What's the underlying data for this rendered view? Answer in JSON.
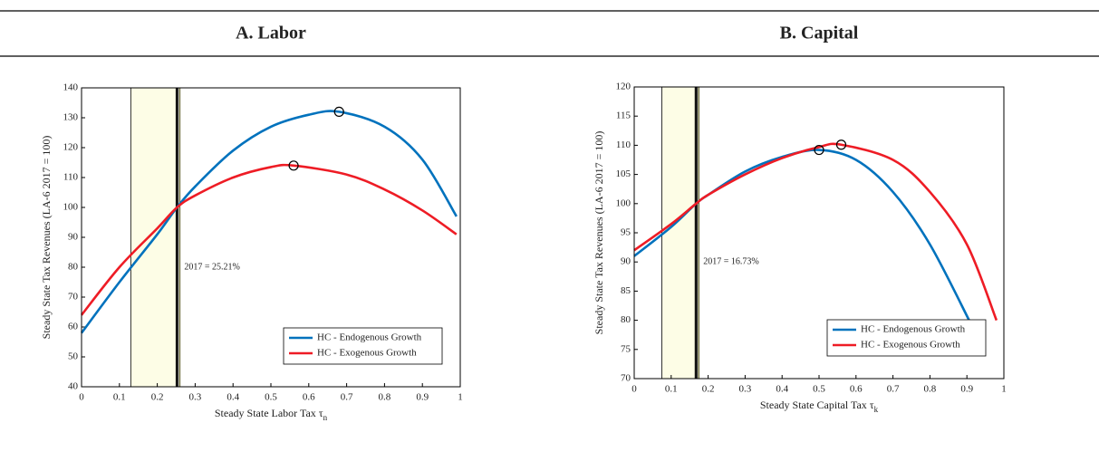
{
  "chart_data": [
    {
      "type": "line",
      "title": "A. Labor",
      "xlabel": "Steady State Labor Tax τ",
      "xlabel_subscript": "n",
      "ylabel": "Steady State Tax Revenues (LA-6 2017 = 100)",
      "xlim": [
        0,
        1
      ],
      "xticks": [
        0,
        0.1,
        0.2,
        0.3,
        0.4,
        0.5,
        0.6,
        0.7,
        0.8,
        0.9,
        1
      ],
      "ylim": [
        40,
        140
      ],
      "yticks": [
        40,
        50,
        60,
        70,
        80,
        90,
        100,
        110,
        120,
        130,
        140
      ],
      "band": [
        0.13,
        0.25
      ],
      "band_color": "#fdfde6",
      "vline": 0.2521,
      "annotation": "2017 = 25.21%",
      "legend": "lower right",
      "series": [
        {
          "name": "HC - Endogenous Growth",
          "color": "#0072bd",
          "x": [
            0,
            0.1,
            0.2,
            0.2521,
            0.3,
            0.4,
            0.5,
            0.6,
            0.68,
            0.8,
            0.9,
            0.99
          ],
          "values": [
            58,
            75,
            91,
            100,
            107,
            119,
            127,
            131,
            132,
            127,
            116,
            97
          ]
        },
        {
          "name": "HC - Exogenous Growth",
          "color": "#ee1c25",
          "x": [
            0,
            0.1,
            0.2,
            0.2521,
            0.3,
            0.4,
            0.5,
            0.56,
            0.7,
            0.8,
            0.9,
            0.99
          ],
          "values": [
            64,
            80,
            93,
            100,
            104,
            110,
            113.5,
            114,
            111,
            106,
            99,
            91
          ]
        }
      ],
      "peaks": [
        {
          "x": 0.68,
          "y": 132
        },
        {
          "x": 0.56,
          "y": 114
        }
      ]
    },
    {
      "type": "line",
      "title": "B. Capital",
      "xlabel": "Steady State Capital Tax τ",
      "xlabel_subscript": "k",
      "ylabel": "Steady State Tax Revenues (LA-6 2017 = 100)",
      "xlim": [
        0,
        1
      ],
      "xticks": [
        0,
        0.1,
        0.2,
        0.3,
        0.4,
        0.5,
        0.6,
        0.7,
        0.8,
        0.9,
        1
      ],
      "ylim": [
        70,
        120
      ],
      "yticks": [
        70,
        75,
        80,
        85,
        90,
        95,
        100,
        105,
        110,
        115,
        120
      ],
      "band": [
        0.075,
        0.17
      ],
      "band_color": "#fdfde6",
      "vline": 0.1673,
      "annotation": "2017 = 16.73%",
      "legend": "lower right",
      "series": [
        {
          "name": "HC - Endogenous Growth",
          "color": "#0072bd",
          "x": [
            0,
            0.1,
            0.1673,
            0.2,
            0.3,
            0.4,
            0.5,
            0.6,
            0.7,
            0.8,
            0.91
          ],
          "values": [
            91,
            96,
            100,
            101.5,
            105.5,
            108,
            109.2,
            107.5,
            102,
            93,
            79.5
          ]
        },
        {
          "name": "HC - Exogenous Growth",
          "color": "#ee1c25",
          "x": [
            0,
            0.1,
            0.1673,
            0.2,
            0.3,
            0.4,
            0.5,
            0.56,
            0.7,
            0.8,
            0.9,
            0.98
          ],
          "values": [
            92,
            96.5,
            100,
            101.5,
            105,
            107.8,
            109.7,
            110.1,
            107.5,
            102,
            93,
            80
          ]
        }
      ],
      "peaks": [
        {
          "x": 0.5,
          "y": 109.2
        },
        {
          "x": 0.56,
          "y": 110.1
        }
      ]
    }
  ]
}
